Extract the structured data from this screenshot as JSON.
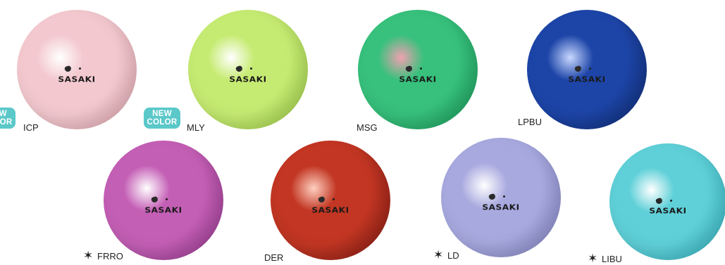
{
  "badge": {
    "line1": "NEW",
    "line2": "COLOR",
    "color": "#5bc8c9"
  },
  "balls": [
    {
      "code": "ICP",
      "logo": "SASAKI",
      "starred": false,
      "color": "#f3c9cf",
      "shade": "#e2a5ae",
      "highlight": "#ffffff"
    },
    {
      "code": "MLY",
      "logo": "SASAKI",
      "starred": false,
      "color": "#c6eb72",
      "shade": "#9ccf43",
      "highlight": "#ffffff"
    },
    {
      "code": "MSG",
      "logo": "SASAKI",
      "starred": false,
      "color": "#37c17c",
      "shade": "#189a58",
      "highlight": "#f0a0b0"
    },
    {
      "code": "LPBU",
      "logo": "SASAKI",
      "starred": false,
      "color": "#1d45a8",
      "shade": "#0f2a6e",
      "highlight": "#c8d8ff"
    },
    {
      "code": "FRRO",
      "logo": "SASAKI",
      "starred": true,
      "color": "#c45fb6",
      "shade": "#93338c",
      "highlight": "#ffffff"
    },
    {
      "code": "DER",
      "logo": "SASAKI",
      "starred": false,
      "color": "#c23623",
      "shade": "#7d1710",
      "highlight": "#ffd0c0"
    },
    {
      "code": "LD",
      "logo": "SASAKI",
      "starred": true,
      "color": "#a8a9df",
      "shade": "#8083c5",
      "highlight": "#ffffff"
    },
    {
      "code": "LIBU",
      "logo": "SASAKI",
      "starred": true,
      "color": "#5fd0d8",
      "shade": "#2fb3c1",
      "highlight": "#ffffff"
    }
  ]
}
